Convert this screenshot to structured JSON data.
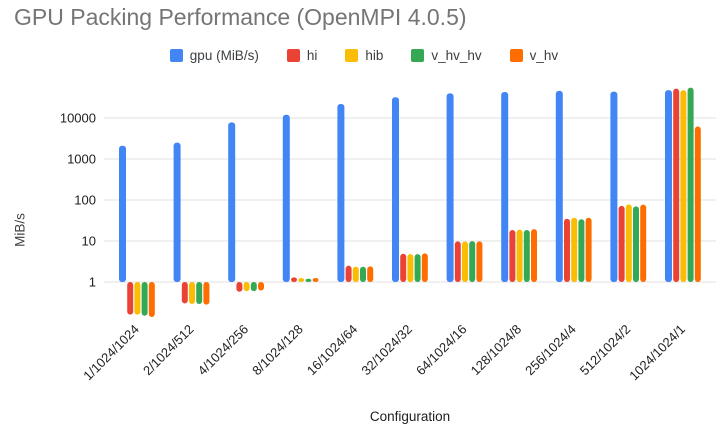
{
  "chart_data": {
    "type": "bar",
    "title": "GPU Packing Performance (OpenMPI 4.0.5)",
    "xlabel": "Configuration",
    "ylabel": "MiB/s",
    "y_scale": "log",
    "y_ticks": [
      1,
      10,
      100,
      1000,
      10000
    ],
    "ylim": [
      0.12,
      63000
    ],
    "grid": true,
    "legend_position": "top",
    "categories": [
      "1/1024/1024",
      "2/1024/512",
      "4/1024/256",
      "8/1024/128",
      "16/1024/64",
      "32/1024/32",
      "64/1024/16",
      "128/1024/8",
      "256/1024/4",
      "512/1024/2",
      "1024/1024/1"
    ],
    "series": [
      {
        "name": "gpu (MiB/s)",
        "color": "#4285F4",
        "values": [
          2100,
          2500,
          7800,
          12000,
          22000,
          32000,
          40000,
          43000,
          46000,
          44000,
          48000
        ]
      },
      {
        "name": "hi",
        "color": "#EA4335",
        "values": [
          0.16,
          0.3,
          0.58,
          1.3,
          2.5,
          4.9,
          9.8,
          18.5,
          35,
          72,
          52000
        ]
      },
      {
        "name": "hib",
        "color": "#FBBC04",
        "values": [
          0.16,
          0.29,
          0.6,
          1.25,
          2.35,
          4.8,
          9.7,
          19,
          37,
          78,
          48000
        ]
      },
      {
        "name": "v_hv_hv",
        "color": "#34A853",
        "values": [
          0.15,
          0.29,
          0.6,
          1.2,
          2.35,
          4.8,
          9.9,
          18.5,
          34,
          70,
          55000
        ]
      },
      {
        "name": "v_hv",
        "color": "#FF6D01",
        "values": [
          0.14,
          0.28,
          0.62,
          1.25,
          2.4,
          5.0,
          9.8,
          19.5,
          37,
          77,
          6200
        ]
      }
    ]
  },
  "colors": {
    "title": "#757575",
    "gridline": "#e0e0e0",
    "axis_text": "#202124",
    "legend_text": "#3c4043"
  }
}
